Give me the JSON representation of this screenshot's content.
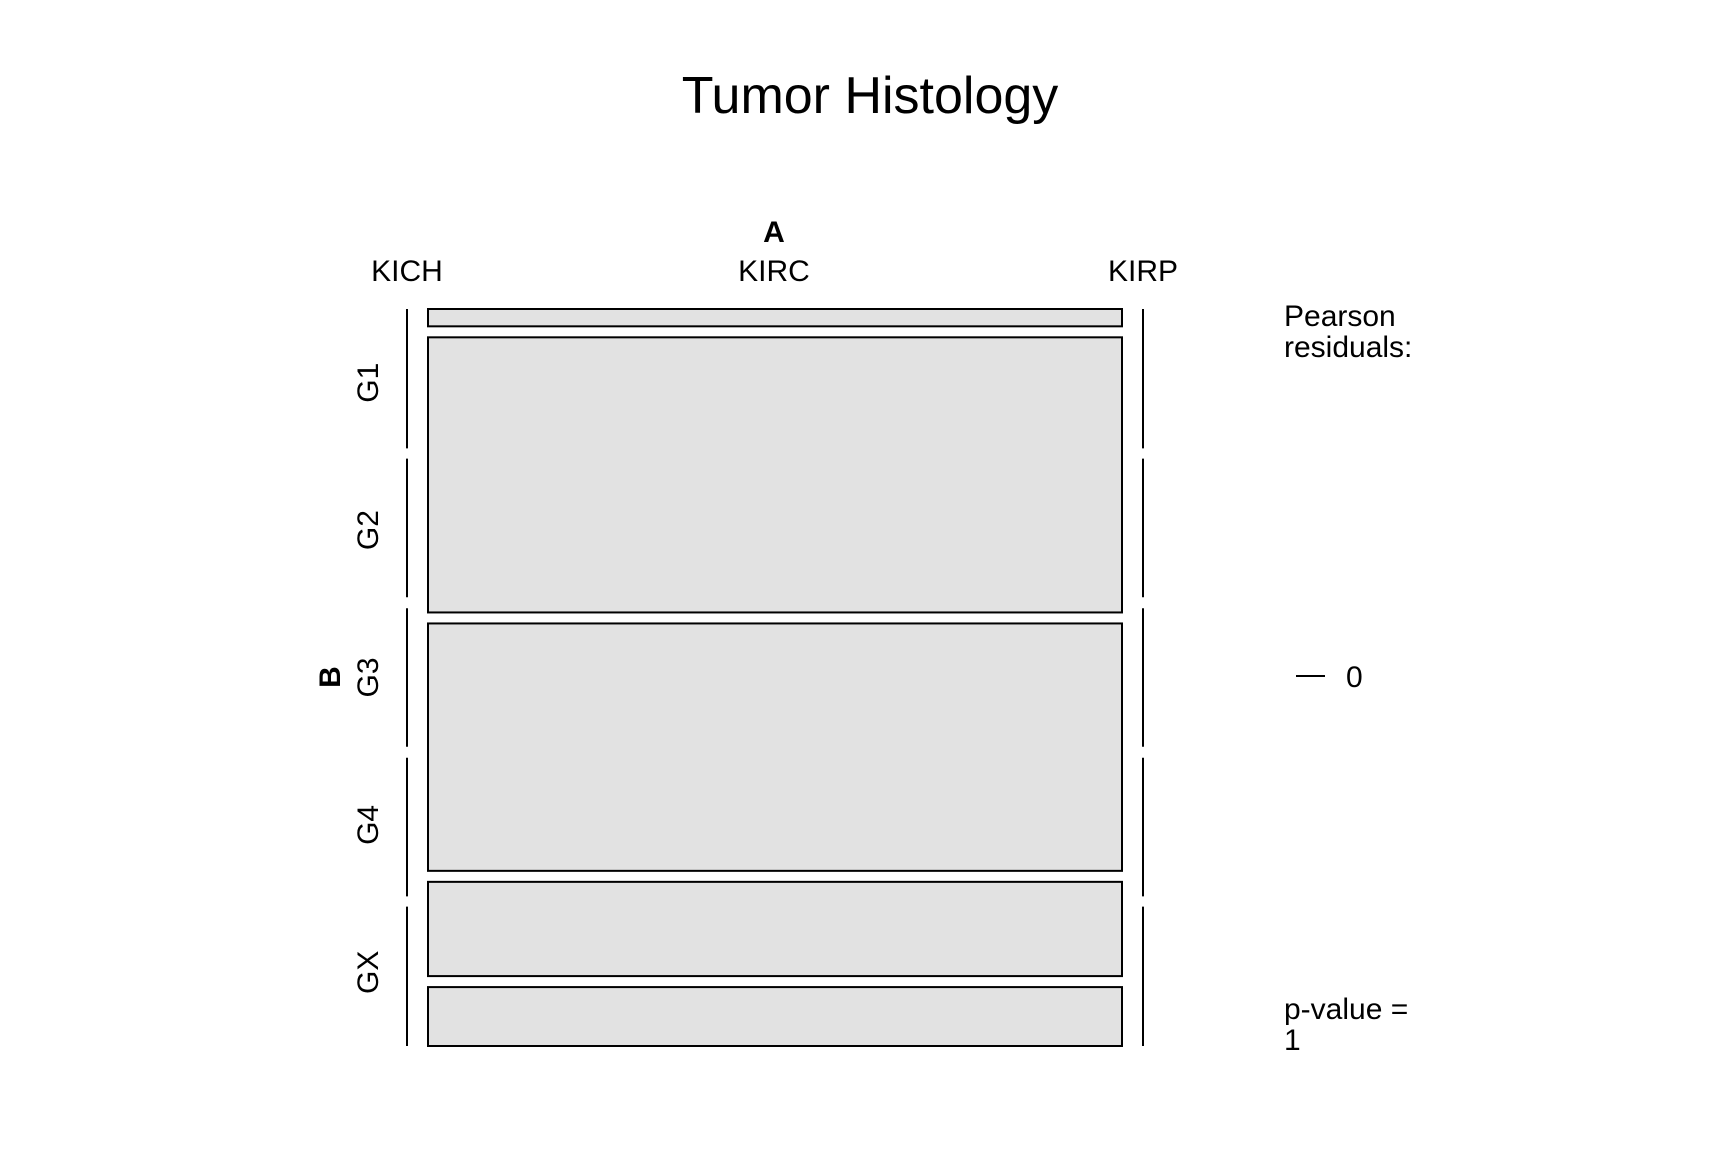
{
  "chart_data": {
    "type": "mosaic",
    "title": "Tumor Histology",
    "x_variable": "A",
    "y_variable": "B",
    "x_categories": [
      "KICH",
      "KIRC",
      "KIRP"
    ],
    "y_categories": [
      "G1",
      "G2",
      "G3",
      "G4",
      "GX"
    ],
    "column_width_fractions": [
      0.0,
      1.0,
      0.0
    ],
    "column_row_fractions": [
      [
        0.2,
        0.2,
        0.2,
        0.2,
        0.2
      ],
      [
        0.025,
        0.397,
        0.357,
        0.136,
        0.085
      ],
      [
        0.2,
        0.2,
        0.2,
        0.2,
        0.2
      ]
    ],
    "legend": {
      "title_line1": "Pearson",
      "title_line2": "residuals:",
      "tick_label": "0",
      "pvalue_line1": "p-value =",
      "pvalue_line2": "1"
    },
    "fill_color": "#e2e2e2"
  }
}
